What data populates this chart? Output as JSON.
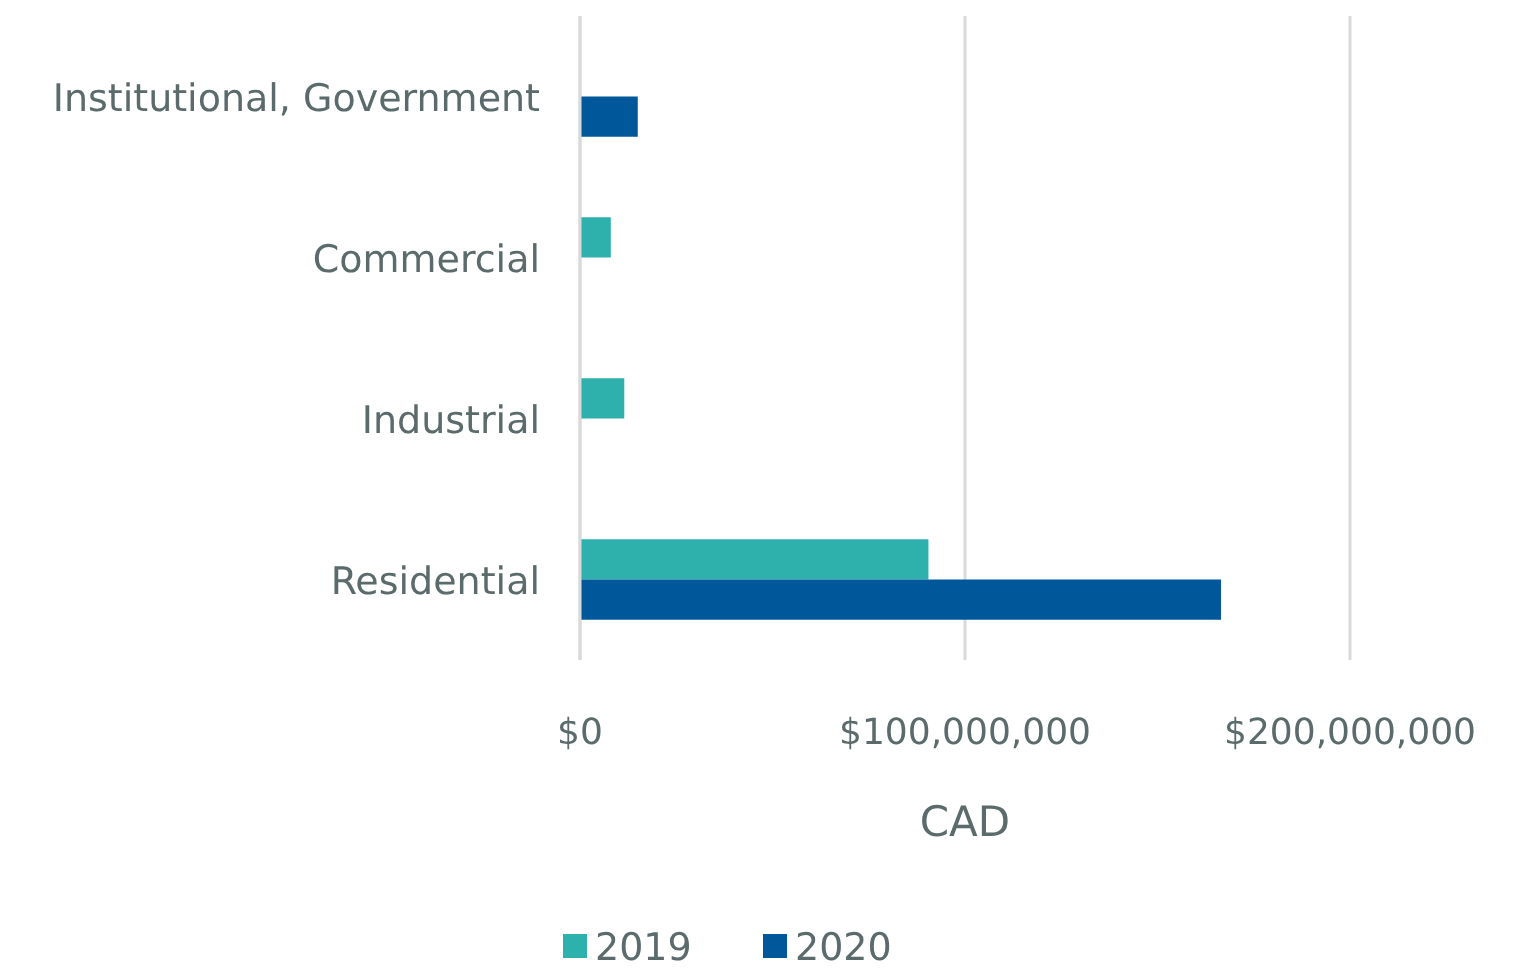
{
  "chart_data": {
    "type": "bar",
    "orientation": "horizontal",
    "categories": [
      "Institutional, Government",
      "Commercial",
      "Industrial",
      "Residential"
    ],
    "series": [
      {
        "name": "2019",
        "color": "#2eb0ad",
        "values": [
          null,
          8000000,
          11500000,
          90500000
        ]
      },
      {
        "name": "2020",
        "color": "#00589a",
        "values": [
          15000000,
          null,
          null,
          166500000
        ]
      }
    ],
    "xlabel": "CAD",
    "xlim": [
      0,
      200000000
    ],
    "xticks": [
      {
        "value": 0,
        "label": "$0"
      },
      {
        "value": 100000000,
        "label": "$100,000,000"
      },
      {
        "value": 200000000,
        "label": "$200,000,000"
      }
    ],
    "grid": "x",
    "legend": "bottom"
  }
}
